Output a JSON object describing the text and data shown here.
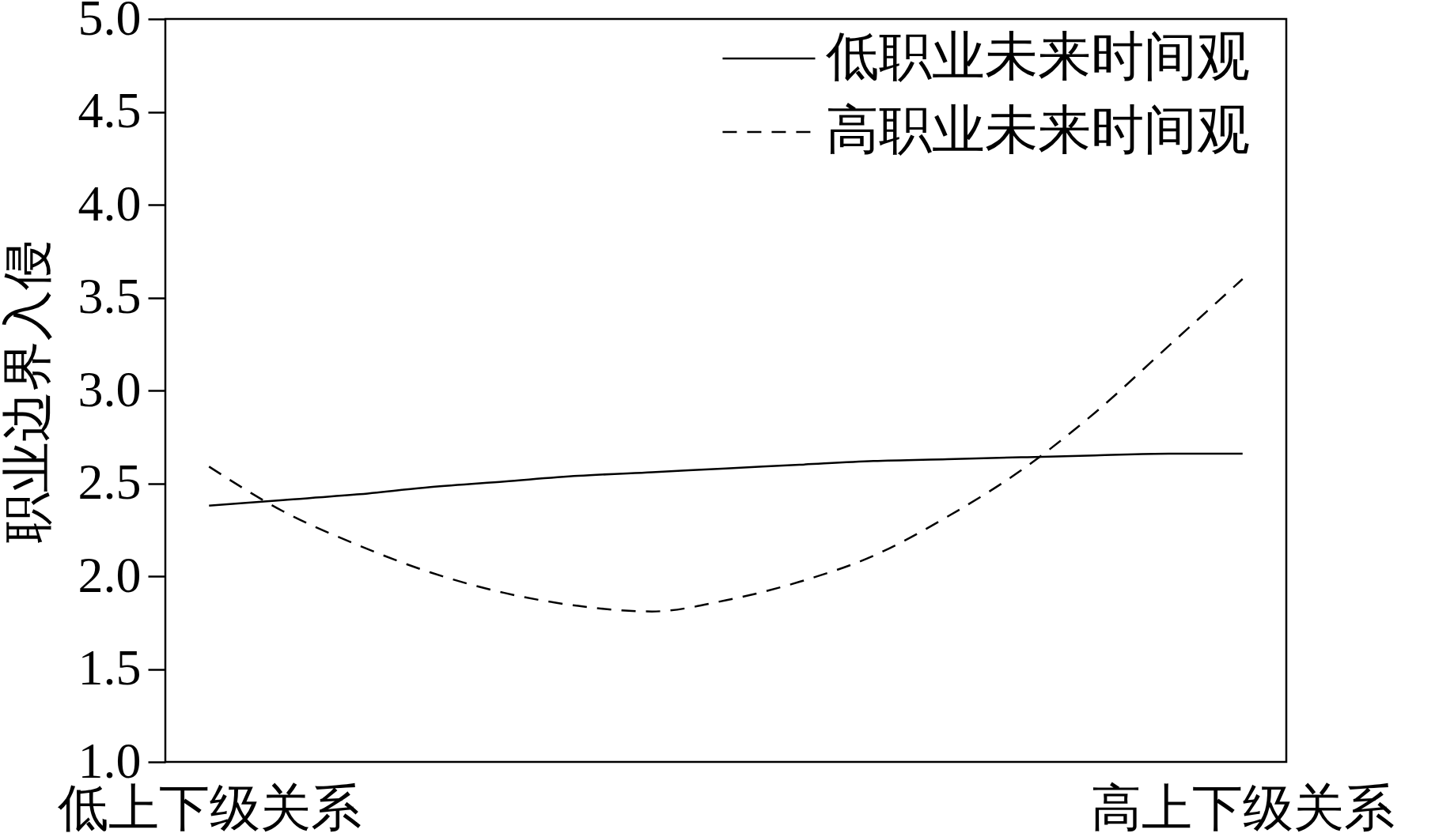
{
  "chart_data": {
    "type": "line",
    "ylabel": "职业边界入侵",
    "categories": [
      "低上下级关系",
      null,
      null,
      null,
      null,
      null,
      null,
      null,
      null,
      null,
      null,
      null,
      null,
      null,
      "高上下级关系"
    ],
    "ylim": [
      1.0,
      5.0
    ],
    "yticks": [
      {
        "value": 1,
        "label": "1.0"
      },
      {
        "value": 1.5,
        "label": "1.5"
      },
      {
        "value": 2,
        "label": "2.0"
      },
      {
        "value": 2.5,
        "label": "2.5"
      },
      {
        "value": 3,
        "label": "3.0"
      },
      {
        "value": 3.5,
        "label": "3.5"
      },
      {
        "value": 4,
        "label": "4.0"
      },
      {
        "value": 4.5,
        "label": "4.5"
      },
      {
        "value": 5,
        "label": "5.0"
      }
    ],
    "grid": false,
    "legend": "top right",
    "series": [
      {
        "name": "低职业未来时间观",
        "color": "#000000",
        "line_style": "solid",
        "values": [
          2.38,
          2.41,
          2.44,
          2.48,
          2.51,
          2.54,
          2.56,
          2.58,
          2.6,
          2.62,
          2.63,
          2.64,
          2.65,
          2.66,
          2.66
        ]
      },
      {
        "name": "高职业未来时间观",
        "color": "#000000",
        "line_style": "dashed",
        "values": [
          2.59,
          2.35,
          2.17,
          2.02,
          1.91,
          1.84,
          1.81,
          1.87,
          1.97,
          2.11,
          2.32,
          2.57,
          2.88,
          3.24,
          3.6
        ]
      }
    ]
  }
}
